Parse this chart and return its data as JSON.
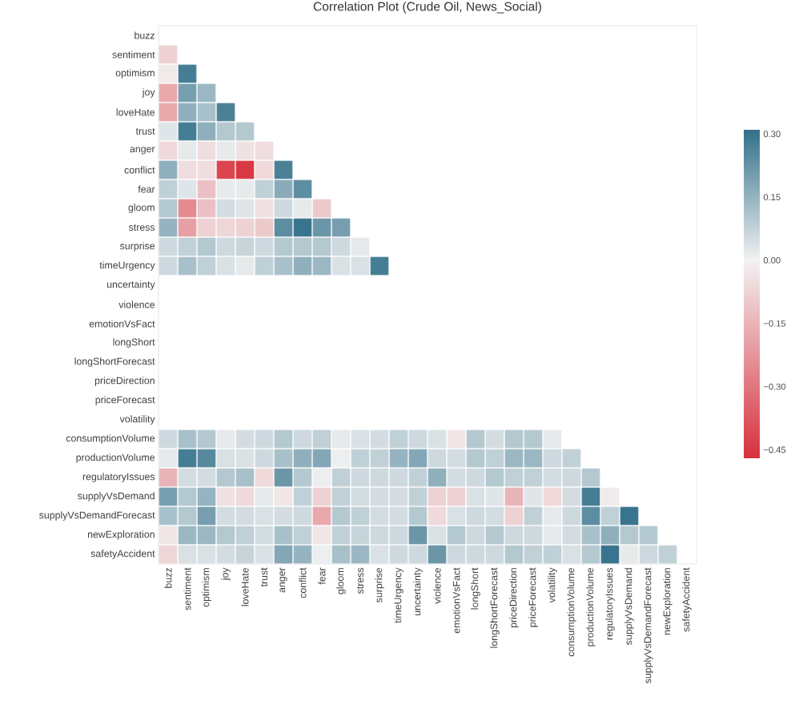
{
  "chart_data": {
    "type": "heatmap",
    "title": "Correlation Plot (Crude Oil, News_Social)",
    "categories": [
      "buzz",
      "sentiment",
      "optimism",
      "joy",
      "loveHate",
      "trust",
      "anger",
      "conflict",
      "fear",
      "gloom",
      "stress",
      "surprise",
      "timeUrgency",
      "uncertainty",
      "violence",
      "emotionVsFact",
      "longShort",
      "longShortForecast",
      "priceDirection",
      "priceForecast",
      "volatility",
      "consumptionVolume",
      "productionVolume",
      "regulatoryIssues",
      "supplyVsDemand",
      "supplyVsDemandForecast",
      "newExploration",
      "safetyAccident"
    ],
    "y_categories": [
      "buzz",
      "sentiment",
      "optimism",
      "joy",
      "loveHate",
      "trust",
      "anger",
      "conflict",
      "fear",
      "gloom",
      "stress",
      "surprise",
      "timeUrgency",
      "uncertainty",
      "violence",
      "emotionVsFact",
      "longShort",
      "longShortForecast",
      "priceDirection",
      "priceForecast",
      "volatility",
      "consumptionVolume",
      "productionVolume",
      "regulatoryIssues",
      "supplyVsDemand",
      "supplyVsDemandForecast",
      "newExploration",
      "safetyAccident"
    ],
    "cells": [
      [
        null,
        null,
        null,
        null,
        null,
        null,
        null,
        null,
        null,
        null,
        null,
        null,
        null,
        null,
        null,
        null,
        null,
        null,
        null,
        null,
        null,
        null,
        null,
        null,
        null,
        null,
        null,
        null
      ],
      [
        -0.08,
        null,
        null,
        null,
        null,
        null,
        null,
        null,
        null,
        null,
        null,
        null,
        null,
        null,
        null,
        null,
        null,
        null,
        null,
        null,
        null,
        null,
        null,
        null,
        null,
        null,
        null,
        null
      ],
      [
        -0.02,
        0.28,
        null,
        null,
        null,
        null,
        null,
        null,
        null,
        null,
        null,
        null,
        null,
        null,
        null,
        null,
        null,
        null,
        null,
        null,
        null,
        null,
        null,
        null,
        null,
        null,
        null,
        null
      ],
      [
        -0.18,
        0.2,
        0.14,
        null,
        null,
        null,
        null,
        null,
        null,
        null,
        null,
        null,
        null,
        null,
        null,
        null,
        null,
        null,
        null,
        null,
        null,
        null,
        null,
        null,
        null,
        null,
        null,
        null
      ],
      [
        -0.18,
        0.16,
        0.12,
        0.27,
        null,
        null,
        null,
        null,
        null,
        null,
        null,
        null,
        null,
        null,
        null,
        null,
        null,
        null,
        null,
        null,
        null,
        null,
        null,
        null,
        null,
        null,
        null,
        null
      ],
      [
        0.03,
        0.28,
        0.16,
        0.1,
        0.1,
        null,
        null,
        null,
        null,
        null,
        null,
        null,
        null,
        null,
        null,
        null,
        null,
        null,
        null,
        null,
        null,
        null,
        null,
        null,
        null,
        null,
        null,
        null
      ],
      [
        -0.06,
        0.02,
        -0.05,
        0.02,
        -0.04,
        -0.05,
        null,
        null,
        null,
        null,
        null,
        null,
        null,
        null,
        null,
        null,
        null,
        null,
        null,
        null,
        null,
        null,
        null,
        null,
        null,
        null,
        null,
        null
      ],
      [
        0.16,
        -0.05,
        -0.05,
        -0.42,
        -0.45,
        -0.06,
        0.27,
        null,
        null,
        null,
        null,
        null,
        null,
        null,
        null,
        null,
        null,
        null,
        null,
        null,
        null,
        null,
        null,
        null,
        null,
        null,
        null,
        null
      ],
      [
        0.08,
        0.03,
        -0.12,
        0.02,
        0.02,
        0.08,
        0.17,
        0.24,
        null,
        null,
        null,
        null,
        null,
        null,
        null,
        null,
        null,
        null,
        null,
        null,
        null,
        null,
        null,
        null,
        null,
        null,
        null,
        null
      ],
      [
        0.1,
        -0.25,
        -0.12,
        0.05,
        0.03,
        -0.04,
        0.06,
        0.02,
        -0.1,
        null,
        null,
        null,
        null,
        null,
        null,
        null,
        null,
        null,
        null,
        null,
        null,
        null,
        null,
        null,
        null,
        null,
        null,
        null
      ],
      [
        0.15,
        -0.2,
        -0.08,
        -0.07,
        -0.08,
        -0.1,
        0.24,
        0.3,
        0.22,
        0.2,
        null,
        null,
        null,
        null,
        null,
        null,
        null,
        null,
        null,
        null,
        null,
        null,
        null,
        null,
        null,
        null,
        null,
        null
      ],
      [
        0.06,
        0.08,
        0.1,
        0.06,
        0.07,
        0.06,
        0.1,
        0.1,
        0.1,
        0.06,
        0.02,
        null,
        null,
        null,
        null,
        null,
        null,
        null,
        null,
        null,
        null,
        null,
        null,
        null,
        null,
        null,
        null,
        null
      ],
      [
        0.06,
        0.12,
        0.08,
        0.04,
        0.02,
        0.08,
        0.12,
        0.16,
        0.14,
        0.04,
        0.04,
        0.28,
        null,
        null,
        null,
        null,
        null,
        null,
        null,
        null,
        null,
        null,
        null,
        null,
        null,
        null,
        null,
        null
      ],
      [
        null,
        null,
        null,
        null,
        null,
        null,
        null,
        null,
        null,
        null,
        null,
        null,
        null,
        null,
        null,
        null,
        null,
        null,
        null,
        null,
        null,
        null,
        null,
        null,
        null,
        null,
        null,
        null
      ],
      [
        null,
        null,
        null,
        null,
        null,
        null,
        null,
        null,
        null,
        null,
        null,
        null,
        null,
        null,
        null,
        null,
        null,
        null,
        null,
        null,
        null,
        null,
        null,
        null,
        null,
        null,
        null,
        null
      ],
      [
        null,
        null,
        null,
        null,
        null,
        null,
        null,
        null,
        null,
        null,
        null,
        null,
        null,
        null,
        null,
        null,
        null,
        null,
        null,
        null,
        null,
        null,
        null,
        null,
        null,
        null,
        null,
        null
      ],
      [
        null,
        null,
        null,
        null,
        null,
        null,
        null,
        null,
        null,
        null,
        null,
        null,
        null,
        null,
        null,
        null,
        null,
        null,
        null,
        null,
        null,
        null,
        null,
        null,
        null,
        null,
        null,
        null
      ],
      [
        null,
        null,
        null,
        null,
        null,
        null,
        null,
        null,
        null,
        null,
        null,
        null,
        null,
        null,
        null,
        null,
        null,
        null,
        null,
        null,
        null,
        null,
        null,
        null,
        null,
        null,
        null,
        null
      ],
      [
        null,
        null,
        null,
        null,
        null,
        null,
        null,
        null,
        null,
        null,
        null,
        null,
        null,
        null,
        null,
        null,
        null,
        null,
        null,
        null,
        null,
        null,
        null,
        null,
        null,
        null,
        null,
        null
      ],
      [
        null,
        null,
        null,
        null,
        null,
        null,
        null,
        null,
        null,
        null,
        null,
        null,
        null,
        null,
        null,
        null,
        null,
        null,
        null,
        null,
        null,
        null,
        null,
        null,
        null,
        null,
        null,
        null
      ],
      [
        null,
        null,
        null,
        null,
        null,
        null,
        null,
        null,
        null,
        null,
        null,
        null,
        null,
        null,
        null,
        null,
        null,
        null,
        null,
        null,
        null,
        null,
        null,
        null,
        null,
        null,
        null,
        null
      ],
      [
        0.06,
        0.12,
        0.1,
        0.02,
        0.05,
        0.06,
        0.1,
        0.06,
        0.08,
        0.02,
        0.04,
        0.05,
        0.08,
        0.06,
        0.04,
        -0.03,
        0.1,
        0.05,
        0.1,
        0.1,
        0.02,
        null,
        null,
        null,
        null,
        null,
        null,
        null
      ],
      [
        0.02,
        0.28,
        0.25,
        0.04,
        0.04,
        0.06,
        0.12,
        0.16,
        0.18,
        0.01,
        0.08,
        0.08,
        0.15,
        0.18,
        0.06,
        0.05,
        0.1,
        0.08,
        0.14,
        0.14,
        0.06,
        0.08,
        null,
        null,
        null,
        null,
        null,
        null
      ],
      [
        -0.15,
        0.05,
        0.05,
        0.1,
        0.12,
        -0.06,
        0.22,
        0.1,
        0.01,
        0.08,
        0.06,
        0.06,
        0.06,
        0.08,
        0.16,
        0.05,
        0.06,
        0.1,
        0.08,
        0.08,
        0.05,
        0.06,
        0.1,
        null,
        null,
        null,
        null,
        null
      ],
      [
        0.2,
        0.1,
        0.15,
        -0.04,
        -0.06,
        0.02,
        -0.03,
        0.08,
        -0.08,
        0.08,
        0.05,
        0.05,
        0.05,
        0.08,
        -0.08,
        -0.08,
        0.04,
        0.03,
        -0.15,
        0.03,
        -0.06,
        0.05,
        0.28,
        -0.02,
        null,
        null,
        null,
        null
      ],
      [
        0.12,
        0.1,
        0.2,
        0.05,
        0.05,
        0.04,
        0.05,
        0.06,
        -0.18,
        0.1,
        0.08,
        0.05,
        0.05,
        0.1,
        -0.06,
        0.04,
        0.06,
        0.05,
        -0.08,
        0.08,
        0.02,
        0.06,
        0.24,
        0.08,
        0.3,
        null,
        null,
        null
      ],
      [
        -0.03,
        0.14,
        0.14,
        0.1,
        0.08,
        0.05,
        0.12,
        0.08,
        -0.03,
        0.08,
        0.07,
        0.06,
        0.06,
        0.22,
        0.04,
        0.1,
        0.06,
        0.1,
        0.06,
        0.06,
        0.02,
        0.05,
        0.12,
        0.16,
        0.1,
        0.1,
        null,
        null
      ],
      [
        -0.07,
        0.04,
        0.04,
        0.05,
        0.07,
        0.04,
        0.18,
        0.15,
        0.01,
        0.12,
        0.14,
        0.04,
        0.06,
        0.06,
        0.22,
        0.06,
        0.06,
        0.06,
        0.1,
        0.08,
        0.08,
        0.04,
        0.1,
        0.3,
        0.02,
        0.06,
        0.08,
        null
      ]
    ],
    "clim": [
      -0.47,
      0.31
    ],
    "cticks": [
      {
        "value": 0.3,
        "label": "0.30"
      },
      {
        "value": 0.15,
        "label": "0.15"
      },
      {
        "value": 0,
        "label": "0.00"
      },
      {
        "value": -0.15,
        "label": "−0.15"
      },
      {
        "value": -0.3,
        "label": "−0.30"
      },
      {
        "value": -0.45,
        "label": "−0.45"
      }
    ]
  }
}
